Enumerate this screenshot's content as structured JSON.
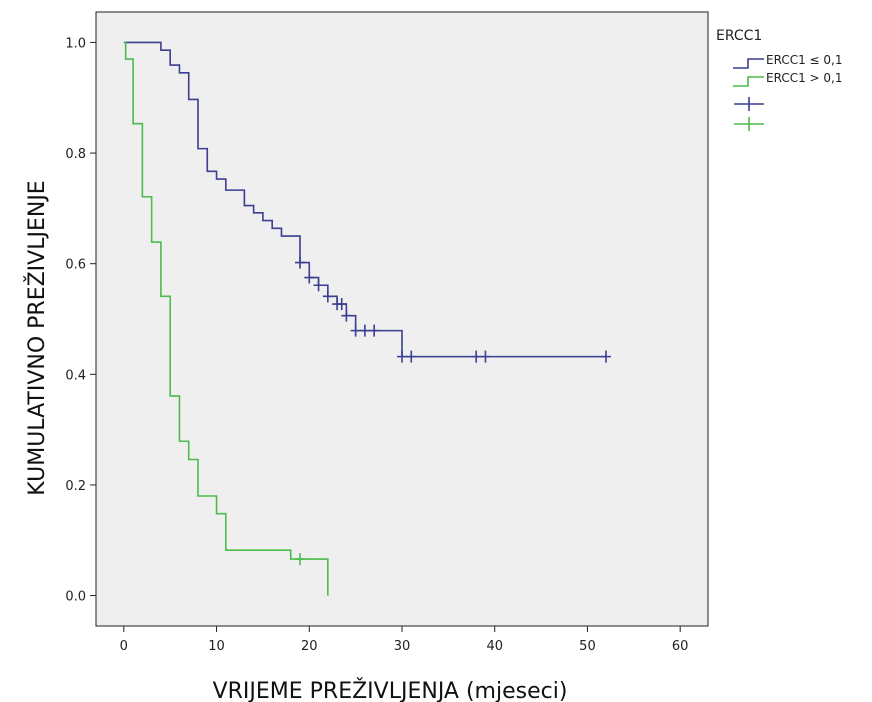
{
  "chart_data": {
    "type": "line",
    "subtype": "kaplan-meier",
    "xlabel": "VRIJEME PREŽIVLJENJA (mjeseci)",
    "ylabel": "KUMULATIVNO PREŽIVLJENJE",
    "xlim": [
      -3,
      63
    ],
    "ylim": [
      -0.055,
      1.055
    ],
    "xticks": [
      "0",
      "10",
      "20",
      "30",
      "40",
      "50",
      "60"
    ],
    "yticks": [
      "0.0",
      "0.2",
      "0.4",
      "0.6",
      "0.8",
      "1.0"
    ],
    "xtick_values": [
      0,
      10,
      20,
      30,
      40,
      50,
      60
    ],
    "ytick_values": [
      0,
      0.2,
      0.4,
      0.6,
      0.8,
      1.0
    ],
    "grid": false,
    "background": "#efefef",
    "legend": {
      "title": "ERCC1",
      "placement": "right-top",
      "entries": [
        "ERCC1 ≤ 0,1",
        "ERCC1 > 0,1"
      ]
    },
    "series": [
      {
        "name": "ERCC1 ≤ 0,1",
        "color": "#3b3f8f",
        "steps": [
          [
            0,
            1.0
          ],
          [
            4,
            0.986
          ],
          [
            5,
            0.959
          ],
          [
            6,
            0.945
          ],
          [
            7,
            0.897
          ],
          [
            8,
            0.808
          ],
          [
            9,
            0.767
          ],
          [
            10,
            0.753
          ],
          [
            11,
            0.733
          ],
          [
            13,
            0.705
          ],
          [
            14,
            0.692
          ],
          [
            15,
            0.678
          ],
          [
            16,
            0.664
          ],
          [
            17,
            0.65
          ],
          [
            19,
            0.602
          ],
          [
            20,
            0.575
          ],
          [
            21,
            0.561
          ],
          [
            22,
            0.541
          ],
          [
            23,
            0.527
          ],
          [
            24,
            0.506
          ],
          [
            25,
            0.479
          ],
          [
            29,
            0.479
          ],
          [
            30,
            0.432
          ],
          [
            52,
            0.432
          ]
        ],
        "censored": [
          [
            19,
            0.602
          ],
          [
            20,
            0.575
          ],
          [
            21,
            0.561
          ],
          [
            22,
            0.541
          ],
          [
            23,
            0.527
          ],
          [
            23.5,
            0.527
          ],
          [
            24,
            0.506
          ],
          [
            25,
            0.479
          ],
          [
            26,
            0.479
          ],
          [
            27,
            0.479
          ],
          [
            30,
            0.432
          ],
          [
            31,
            0.432
          ],
          [
            38,
            0.432
          ],
          [
            39,
            0.432
          ],
          [
            52,
            0.432
          ]
        ]
      },
      {
        "name": "ERCC1 > 0,1",
        "color": "#4cbb4c",
        "steps": [
          [
            0,
            1.0
          ],
          [
            0.2,
            0.97
          ],
          [
            1,
            0.853
          ],
          [
            2,
            0.721
          ],
          [
            3,
            0.639
          ],
          [
            4,
            0.541
          ],
          [
            5,
            0.361
          ],
          [
            6,
            0.279
          ],
          [
            7,
            0.246
          ],
          [
            8,
            0.18
          ],
          [
            10,
            0.148
          ],
          [
            11,
            0.082
          ],
          [
            18,
            0.066
          ],
          [
            22,
            0.066
          ],
          [
            22,
            0.0
          ]
        ],
        "censored": [
          [
            19,
            0.066
          ]
        ]
      }
    ]
  }
}
